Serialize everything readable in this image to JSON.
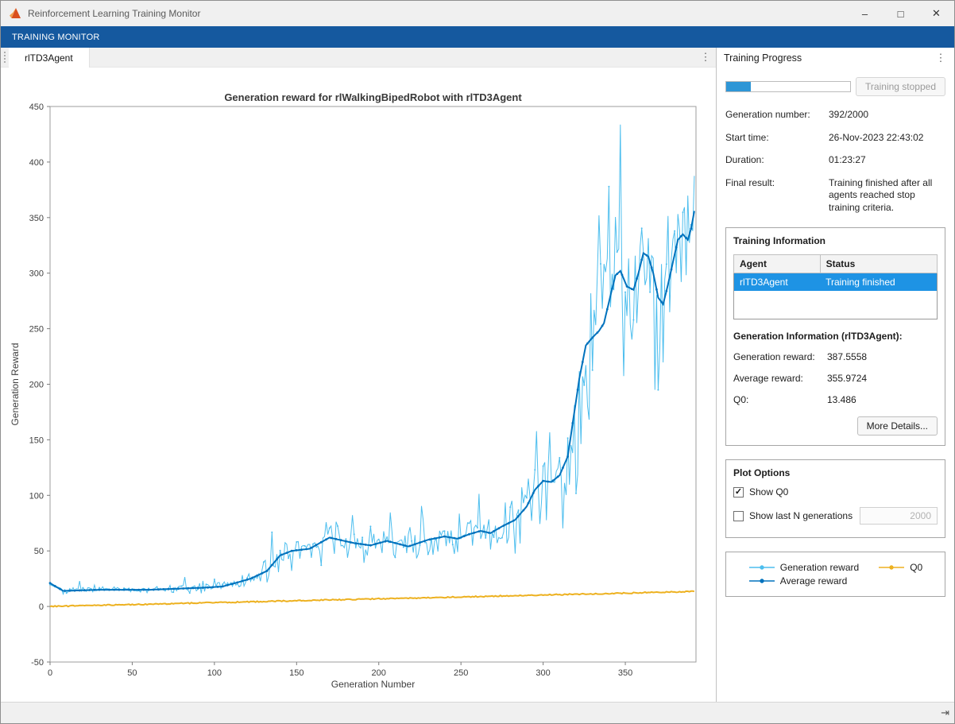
{
  "window": {
    "title": "Reinforcement Learning Training Monitor",
    "controls": {
      "minimize": "–",
      "maximize": "□",
      "close": "✕"
    }
  },
  "ribbon": {
    "tabs": [
      {
        "label": "TRAINING MONITOR",
        "active": true
      }
    ]
  },
  "tab_strip": {
    "tabs": [
      {
        "label": "rlTD3Agent",
        "active": true
      }
    ]
  },
  "icons": {
    "kebab": "⋮",
    "expand": "⇥",
    "checkmark": "✓"
  },
  "colors": {
    "ribbon": "#15599f",
    "selection": "#1e93e4",
    "progress": "#2e96d6"
  },
  "chart_data": {
    "type": "line",
    "title": "Generation reward for rlWalkingBipedRobot with rlTD3Agent",
    "xlabel": "Generation Number",
    "ylabel": "Generation Reward",
    "xlim": [
      0,
      393
    ],
    "ylim": [
      -50,
      450
    ],
    "xticks": [
      0,
      50,
      100,
      150,
      200,
      250,
      300,
      350
    ],
    "yticks": [
      -50,
      0,
      50,
      100,
      150,
      200,
      250,
      300,
      350,
      400,
      450
    ],
    "generations": 392,
    "grid": false,
    "legend_position": "side-panel",
    "series": [
      {
        "name": "Generation reward",
        "color": "#4DBEEE",
        "style": "noisy-line",
        "final": 387.5558
      },
      {
        "name": "Average reward",
        "color": "#0072BD",
        "style": "line",
        "final": 355.9724,
        "keypoints": [
          [
            0,
            21
          ],
          [
            8,
            14
          ],
          [
            30,
            15
          ],
          [
            60,
            15
          ],
          [
            95,
            17
          ],
          [
            105,
            18
          ],
          [
            115,
            22
          ],
          [
            122,
            25
          ],
          [
            132,
            32
          ],
          [
            140,
            46
          ],
          [
            147,
            50
          ],
          [
            158,
            52
          ],
          [
            170,
            62
          ],
          [
            185,
            57
          ],
          [
            195,
            55
          ],
          [
            205,
            59
          ],
          [
            218,
            54
          ],
          [
            230,
            60
          ],
          [
            240,
            63
          ],
          [
            248,
            61
          ],
          [
            255,
            65
          ],
          [
            262,
            68
          ],
          [
            268,
            66
          ],
          [
            275,
            72
          ],
          [
            283,
            78
          ],
          [
            290,
            90
          ],
          [
            295,
            105
          ],
          [
            300,
            113
          ],
          [
            305,
            112
          ],
          [
            310,
            118
          ],
          [
            315,
            135
          ],
          [
            318,
            165
          ],
          [
            322,
            205
          ],
          [
            326,
            235
          ],
          [
            330,
            242
          ],
          [
            334,
            248
          ],
          [
            337,
            255
          ],
          [
            341,
            280
          ],
          [
            344,
            298
          ],
          [
            347,
            302
          ],
          [
            351,
            288
          ],
          [
            355,
            285
          ],
          [
            358,
            300
          ],
          [
            361,
            318
          ],
          [
            364,
            315
          ],
          [
            367,
            300
          ],
          [
            370,
            278
          ],
          [
            373,
            272
          ],
          [
            376,
            290
          ],
          [
            379,
            310
          ],
          [
            382,
            330
          ],
          [
            385,
            335
          ],
          [
            388,
            330
          ],
          [
            390,
            340
          ],
          [
            392,
            355.9724
          ]
        ]
      },
      {
        "name": "Q0",
        "color": "#EDB120",
        "style": "line",
        "start": 0,
        "end": 13.486
      }
    ],
    "noise_amplitude": [
      [
        0,
        3
      ],
      [
        60,
        3
      ],
      [
        100,
        5
      ],
      [
        120,
        7
      ],
      [
        135,
        11
      ],
      [
        150,
        15
      ],
      [
        165,
        20
      ],
      [
        200,
        18
      ],
      [
        240,
        16
      ],
      [
        260,
        20
      ],
      [
        275,
        28
      ],
      [
        285,
        40
      ],
      [
        295,
        48
      ],
      [
        305,
        55
      ],
      [
        315,
        70
      ],
      [
        325,
        80
      ],
      [
        340,
        75
      ],
      [
        355,
        70
      ],
      [
        370,
        88
      ],
      [
        380,
        85
      ],
      [
        392,
        60
      ]
    ],
    "spike_chance": 0.05,
    "spike_scale": 1.6,
    "seed": 7
  },
  "progress_panel": {
    "title": "Training Progress",
    "progress": {
      "value": 392,
      "max": 2000
    },
    "stop_button": "Training stopped",
    "fields": [
      {
        "label": "Generation number:",
        "value": "392/2000"
      },
      {
        "label": "Start time:",
        "value": "26-Nov-2023 22:43:02"
      },
      {
        "label": "Duration:",
        "value": "01:23:27"
      },
      {
        "label": "Final result:",
        "value": "Training finished after all agents reached stop training criteria."
      }
    ],
    "training_information": {
      "title": "Training Information",
      "table": {
        "headers": [
          "Agent",
          "Status"
        ],
        "rows": [
          {
            "agent": "rlTD3Agent",
            "status": "Training finished",
            "selected": true
          }
        ]
      },
      "generation_info_title": "Generation Information (rlTD3Agent):",
      "stats": [
        {
          "label": "Generation reward:",
          "value": "387.5558"
        },
        {
          "label": "Average reward:",
          "value": "355.9724"
        },
        {
          "label": "Q0:",
          "value": "13.486"
        }
      ],
      "more_details_button": "More Details..."
    },
    "plot_options": {
      "title": "Plot Options",
      "show_q0": {
        "label": "Show Q0",
        "checked": true
      },
      "show_last_n": {
        "label": "Show last N generations",
        "checked": false,
        "value": "2000"
      }
    },
    "legend": [
      {
        "label": "Generation reward",
        "series": 0
      },
      {
        "label": "Average reward",
        "series": 1
      },
      {
        "label": "Q0",
        "series": 2
      }
    ]
  }
}
